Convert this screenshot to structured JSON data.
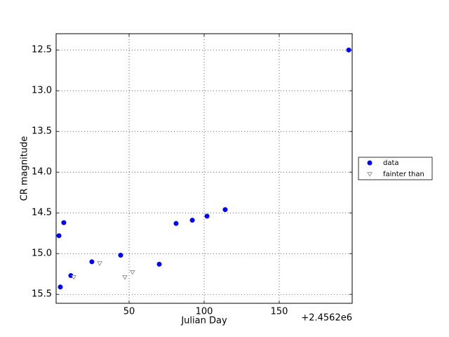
{
  "chart_data": {
    "type": "scatter",
    "xlabel": "Julian Day",
    "ylabel": "CR magnitude",
    "x_offset_label": "+2.4562e6",
    "xlim": [
      1.4,
      198.6
    ],
    "ylim": [
      15.61,
      12.3
    ],
    "xticks": [
      50,
      100,
      150
    ],
    "yticks": [
      12.5,
      {
        "value": 13.0,
        "label": "13.0"
      },
      13.5,
      {
        "value": 14.0,
        "label": "14.0"
      },
      14.5,
      {
        "value": 15.0,
        "label": "15.0"
      },
      15.5
    ],
    "grid": true,
    "legend": "outside right",
    "series": [
      {
        "name": "data",
        "color": "#0000ff",
        "marker": "circle",
        "x": [
          3.3,
          4.2,
          6.5,
          11.2,
          25.2,
          44.4,
          70.1,
          81.3,
          92.1,
          101.9,
          114.0,
          196.3
        ],
        "values": [
          14.78,
          15.41,
          14.62,
          15.27,
          15.1,
          15.02,
          15.13,
          14.63,
          14.59,
          14.54,
          14.46,
          12.5
        ]
      },
      {
        "name": "fainter than",
        "color": "#808080",
        "marker": "triangle-down",
        "x": [
          13.1,
          30.4,
          47.2,
          52.3
        ],
        "values": [
          15.29,
          15.12,
          15.29,
          15.23
        ]
      }
    ]
  }
}
